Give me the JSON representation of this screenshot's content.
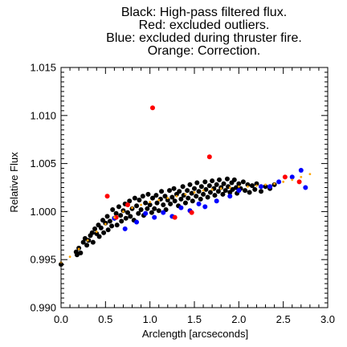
{
  "chart_data": {
    "type": "scatter",
    "title_lines": [
      "Black: High-pass filtered flux.",
      "Red: excluded outliers.",
      "Blue: excluded during thruster fire.",
      "Orange: Correction."
    ],
    "xlabel": "Arclength [arcseconds]",
    "ylabel": "Relative Flux",
    "xlim": [
      0.0,
      3.0
    ],
    "ylim": [
      0.99,
      1.015
    ],
    "xticks": [
      "0.0",
      "0.5",
      "1.0",
      "1.5",
      "2.0",
      "2.5",
      "3.0"
    ],
    "yticks": [
      "0.990",
      "0.995",
      "1.000",
      "1.005",
      "1.010",
      "1.015"
    ],
    "grid": false,
    "colors": {
      "high_pass": "#000000",
      "outliers": "#ff0000",
      "thruster": "#0000ff",
      "correction": "#ffa500"
    },
    "series": [
      {
        "key": "high_pass",
        "points": [
          [
            0.0,
            0.9945
          ],
          [
            0.17,
            0.9958
          ],
          [
            0.18,
            0.9955
          ],
          [
            0.2,
            0.9962
          ],
          [
            0.22,
            0.9957
          ],
          [
            0.25,
            0.9968
          ],
          [
            0.27,
            0.9972
          ],
          [
            0.29,
            0.9965
          ],
          [
            0.31,
            0.997
          ],
          [
            0.33,
            0.9975
          ],
          [
            0.35,
            0.9978
          ],
          [
            0.36,
            0.9968
          ],
          [
            0.38,
            0.9982
          ],
          [
            0.4,
            0.9977
          ],
          [
            0.42,
            0.9986
          ],
          [
            0.43,
            0.9974
          ],
          [
            0.45,
            0.9983
          ],
          [
            0.47,
            0.9991
          ],
          [
            0.48,
            0.9978
          ],
          [
            0.5,
            0.9988
          ],
          [
            0.52,
            0.9995
          ],
          [
            0.53,
            0.9981
          ],
          [
            0.55,
            0.999
          ],
          [
            0.57,
            0.9985
          ],
          [
            0.58,
            1.0002
          ],
          [
            0.6,
            0.9993
          ],
          [
            0.62,
            0.9998
          ],
          [
            0.63,
            0.9986
          ],
          [
            0.65,
            1.0005
          ],
          [
            0.67,
            0.9996
          ],
          [
            0.68,
            0.999
          ],
          [
            0.7,
            1.0001
          ],
          [
            0.72,
            1.0008
          ],
          [
            0.73,
            0.9993
          ],
          [
            0.75,
            0.9999
          ],
          [
            0.77,
            1.0011
          ],
          [
            0.78,
            0.9995
          ],
          [
            0.8,
            1.0003
          ],
          [
            0.82,
            0.9991
          ],
          [
            0.83,
            1.0014
          ],
          [
            0.85,
            1.0006
          ],
          [
            0.87,
            0.9998
          ],
          [
            0.88,
            1.0012
          ],
          [
            0.9,
            1.0002
          ],
          [
            0.92,
            1.0016
          ],
          [
            0.93,
            0.9996
          ],
          [
            0.95,
            1.0009
          ],
          [
            0.97,
            1.0003
          ],
          [
            0.98,
            1.0018
          ],
          [
            1.0,
            1.0007
          ],
          [
            1.02,
            0.9999
          ],
          [
            1.03,
            1.0014
          ],
          [
            1.05,
            1.0003
          ],
          [
            1.07,
            1.0017
          ],
          [
            1.08,
            1.0009
          ],
          [
            1.1,
            1.0001
          ],
          [
            1.12,
            1.0013
          ],
          [
            1.13,
            1.0021
          ],
          [
            1.15,
            1.0007
          ],
          [
            1.17,
            1.0016
          ],
          [
            1.18,
            1.0002
          ],
          [
            1.2,
            1.0012
          ],
          [
            1.22,
            1.0022
          ],
          [
            1.23,
            1.0008
          ],
          [
            1.25,
            1.0015
          ],
          [
            1.27,
            1.0024
          ],
          [
            1.28,
            1.0011
          ],
          [
            1.3,
            1.0018
          ],
          [
            1.32,
            1.0006
          ],
          [
            1.33,
            1.0021
          ],
          [
            1.35,
            1.0013
          ],
          [
            1.37,
            1.0026
          ],
          [
            1.38,
            1.0017
          ],
          [
            1.4,
            1.0009
          ],
          [
            1.42,
            1.0022
          ],
          [
            1.43,
            1.0014
          ],
          [
            1.45,
            1.0028
          ],
          [
            1.47,
            1.0019
          ],
          [
            1.48,
            1.0011
          ],
          [
            1.5,
            1.0024
          ],
          [
            1.52,
            1.0016
          ],
          [
            1.53,
            1.003
          ],
          [
            1.55,
            1.0021
          ],
          [
            1.57,
            1.0013
          ],
          [
            1.58,
            1.0026
          ],
          [
            1.6,
            1.0018
          ],
          [
            1.62,
            1.0031
          ],
          [
            1.63,
            1.0023
          ],
          [
            1.65,
            1.0015
          ],
          [
            1.67,
            1.0027
          ],
          [
            1.68,
            1.002
          ],
          [
            1.7,
            1.0032
          ],
          [
            1.72,
            1.0024
          ],
          [
            1.73,
            1.0017
          ],
          [
            1.75,
            1.0028
          ],
          [
            1.77,
            1.0021
          ],
          [
            1.78,
            1.0033
          ],
          [
            1.8,
            1.0025
          ],
          [
            1.82,
            1.0018
          ],
          [
            1.83,
            1.0029
          ],
          [
            1.85,
            1.0022
          ],
          [
            1.87,
            1.0034
          ],
          [
            1.88,
            1.0026
          ],
          [
            1.9,
            1.002
          ],
          [
            1.92,
            1.003
          ],
          [
            1.93,
            1.0023
          ],
          [
            1.95,
            1.0033
          ],
          [
            1.97,
            1.0025
          ],
          [
            1.98,
            1.0019
          ],
          [
            2.0,
            1.0029
          ],
          [
            2.02,
            1.0024
          ],
          [
            2.05,
            1.0031
          ],
          [
            2.07,
            1.0022
          ],
          [
            2.1,
            1.0028
          ],
          [
            2.12,
            1.002
          ],
          [
            2.15,
            1.0027
          ],
          [
            2.18,
            1.0023
          ],
          [
            2.2,
            1.0029
          ],
          [
            2.25,
            1.0021
          ],
          [
            2.3,
            1.0026
          ],
          [
            2.35,
            1.0024
          ],
          [
            2.4,
            1.0028
          ]
        ]
      },
      {
        "key": "thruster",
        "points": [
          [
            0.6,
            0.9993
          ],
          [
            0.72,
            0.9982
          ],
          [
            0.85,
            0.9989
          ],
          [
            0.95,
            0.9998
          ],
          [
            1.05,
            0.9994
          ],
          [
            1.15,
            0.9999
          ],
          [
            1.25,
            0.9995
          ],
          [
            1.35,
            1.0004
          ],
          [
            1.45,
            1.0001
          ],
          [
            1.55,
            1.0008
          ],
          [
            1.62,
            1.0005
          ],
          [
            1.75,
            1.0011
          ],
          [
            1.9,
            1.0016
          ],
          [
            2.0,
            1.0022
          ],
          [
            2.25,
            1.0026
          ],
          [
            2.35,
            1.0026
          ],
          [
            2.45,
            1.0031
          ],
          [
            2.6,
            1.0036
          ],
          [
            2.7,
            1.0043
          ],
          [
            2.75,
            1.0025
          ]
        ]
      },
      {
        "key": "outliers",
        "points": [
          [
            1.03,
            1.0108
          ],
          [
            1.67,
            1.0057
          ],
          [
            0.52,
            1.0016
          ],
          [
            0.75,
            1.0007
          ],
          [
            0.62,
            0.9994
          ],
          [
            1.28,
            0.9994
          ],
          [
            1.47,
            0.9999
          ],
          [
            2.52,
            1.0036
          ],
          [
            2.68,
            1.0031
          ]
        ]
      },
      {
        "key": "correction",
        "points": [
          [
            0.0,
            0.9947
          ],
          [
            0.1,
            0.9953
          ],
          [
            0.2,
            0.9961
          ],
          [
            0.3,
            0.997
          ],
          [
            0.4,
            0.9979
          ],
          [
            0.5,
            0.9987
          ],
          [
            0.6,
            0.9994
          ],
          [
            0.7,
            1.0
          ],
          [
            0.8,
            1.0004
          ],
          [
            0.9,
            1.0007
          ],
          [
            1.0,
            1.001
          ],
          [
            1.1,
            1.0012
          ],
          [
            1.2,
            1.0014
          ],
          [
            1.3,
            1.0016
          ],
          [
            1.4,
            1.0018
          ],
          [
            1.5,
            1.002
          ],
          [
            1.6,
            1.0022
          ],
          [
            1.7,
            1.0023
          ],
          [
            1.8,
            1.0024
          ],
          [
            1.9,
            1.0025
          ],
          [
            2.0,
            1.0026
          ],
          [
            2.1,
            1.0026
          ],
          [
            2.2,
            1.0027
          ],
          [
            2.3,
            1.0028
          ],
          [
            2.4,
            1.0029
          ],
          [
            2.5,
            1.0031
          ],
          [
            2.6,
            1.0033
          ],
          [
            2.7,
            1.0036
          ],
          [
            2.8,
            1.0039
          ]
        ]
      }
    ]
  }
}
